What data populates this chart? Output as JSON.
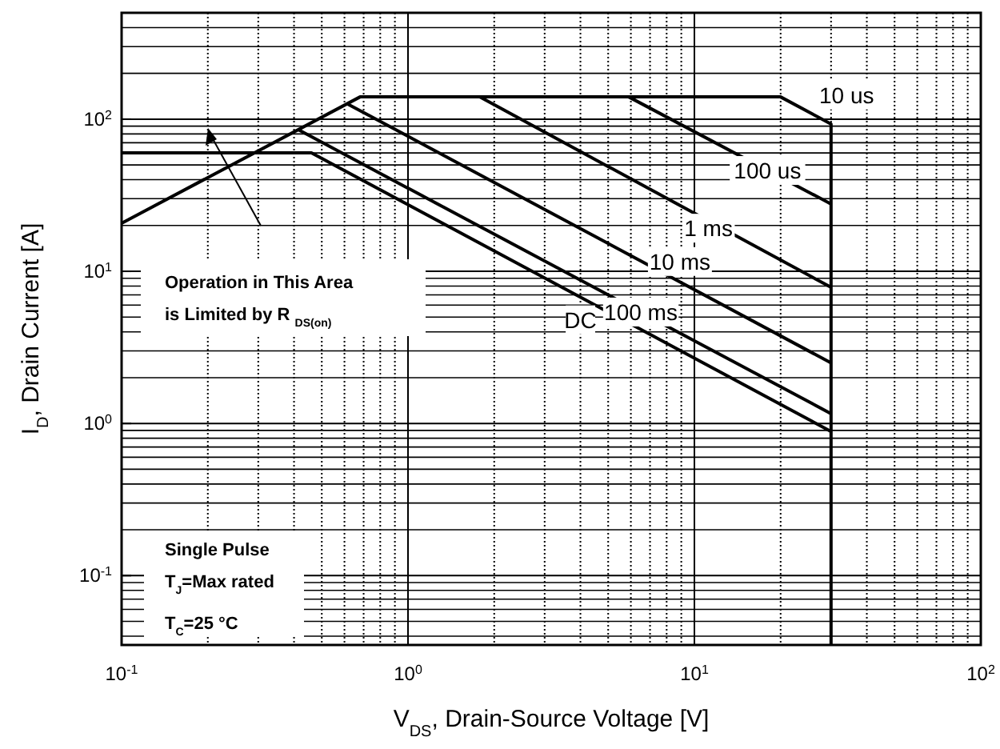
{
  "chart_data": {
    "type": "line",
    "xlabel": "V$_{DS}$, Drain-Source Voltage [V]",
    "ylabel": "I$_{D}$, Drain Current [A]",
    "log": "xy",
    "grid": true,
    "xlim": [
      0.1,
      100
    ],
    "ylim": [
      0.035,
      500
    ],
    "xticks": [
      {
        "value": 0.1,
        "label": "10$^{-1}$"
      },
      {
        "value": 1,
        "label": "10$^{0}$"
      },
      {
        "value": 10,
        "label": "10$^{1}$"
      },
      {
        "value": 100,
        "label": "10$^{2}$"
      }
    ],
    "yticks": [
      {
        "value": 0.1,
        "label": "10$^{-1}$"
      },
      {
        "value": 1,
        "label": "10$^{0}$"
      },
      {
        "value": 10,
        "label": "10$^{1}$"
      },
      {
        "value": 100,
        "label": "10$^{2}$"
      }
    ],
    "series": [
      {
        "color": "#000000",
        "x": [
          0.1,
          0.68,
          20,
          30,
          30
        ],
        "values": [
          20.7,
          140,
          140,
          93,
          0.035
        ]
      },
      {
        "color": "#000000",
        "x": [
          5.9,
          30
        ],
        "values": [
          140,
          27.7
        ]
      },
      {
        "color": "#000000",
        "x": [
          1.78,
          30
        ],
        "values": [
          140,
          7.85
        ]
      },
      {
        "color": "#000000",
        "x": [
          0.61,
          30
        ],
        "values": [
          127,
          2.5
        ]
      },
      {
        "color": "#000000",
        "x": [
          0.415,
          30
        ],
        "values": [
          85,
          1.16
        ]
      },
      {
        "color": "#000000",
        "x": [
          0.1,
          0.46,
          30
        ],
        "values": [
          60,
          60,
          0.886
        ]
      }
    ],
    "annotations": [
      {
        "text": "10 us",
        "x": 34,
        "y": 144
      },
      {
        "text": "100 us",
        "x": 18,
        "y": 46
      },
      {
        "text": "1 ms",
        "x": 11.2,
        "y": 19.2
      },
      {
        "text": "10 ms",
        "x": 8.9,
        "y": 11.6
      },
      {
        "text": "100 ms",
        "x": 6.5,
        "y": 5.4
      },
      {
        "text": "DC",
        "x": 4.0,
        "y": 4.8
      },
      "Operation in This Area\nis Limited by R $_{DS(on)}$",
      "Single Pulse\nT$_{J}$=Max rated\nT$_{C}$=25 °C"
    ]
  }
}
